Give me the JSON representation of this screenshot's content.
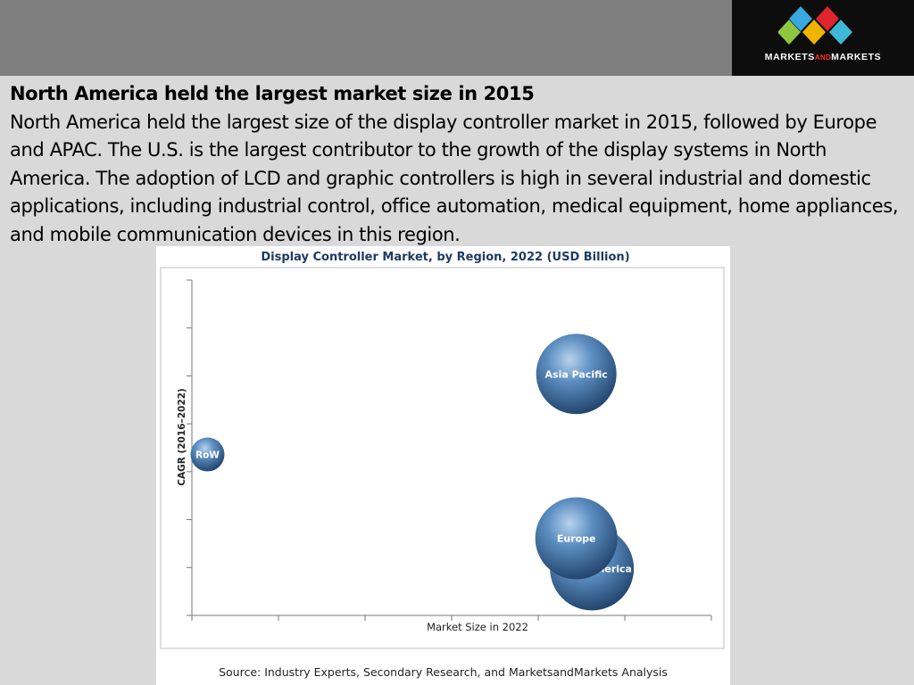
{
  "header": {
    "logo": {
      "text_left": "MARKETS",
      "text_mid": "AND",
      "text_right": "MARKETS",
      "diamond_colors": [
        "#3aa8e0",
        "#8fc641",
        "#f0b400",
        "#e0242b",
        "#3fb7d6"
      ]
    }
  },
  "slide": {
    "heading": "North America held the largest market size in 2015",
    "body": "North America held the largest size of the display controller market in 2015, followed by Europe and APAC. The U.S. is the largest contributor to the growth of the display systems in North America. The adoption of LCD and graphic controllers is high in several industrial and domestic applications, including industrial control, office automation, medical equipment, home appliances, and mobile communication devices in this region."
  },
  "chart_data": {
    "type": "scatter",
    "subtype": "bubble",
    "title": "Display Controller Market, by Region, 2022 (USD Billion)",
    "xlabel": "Market Size in 2022",
    "ylabel": "CAGR (2016–2022)",
    "axis_ticks_unlabeled": true,
    "xlim": [
      0,
      10
    ],
    "ylim": [
      0,
      10
    ],
    "grid": false,
    "legend": "none",
    "bubble_color": "#3d6fa3",
    "points": [
      {
        "label": "Asia Pacific",
        "x": 7.4,
        "y": 7.2,
        "size": 45
      },
      {
        "label": "RoW",
        "x": 0.3,
        "y": 4.8,
        "size": 19
      },
      {
        "label": "North America",
        "x": 7.7,
        "y": 1.4,
        "size": 47
      },
      {
        "label": "Europe",
        "x": 7.4,
        "y": 2.3,
        "size": 46
      }
    ],
    "source": "Source: Industry Experts, Secondary Research, and MarketsandMarkets Analysis"
  }
}
